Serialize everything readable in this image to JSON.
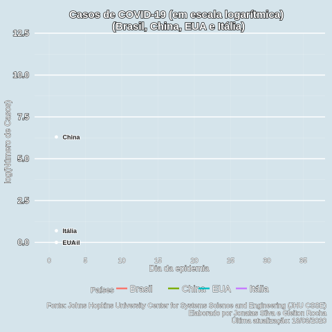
{
  "chart_data": {
    "type": "scatter",
    "title_line1": "Casos de COVID-19 (em escala logarítmica)",
    "title_line2": "(Brasil, China, EUA e Itália)",
    "xlabel": "Dia da epidemia",
    "ylabel": "log(Número de Casos)",
    "xlim": [
      -2,
      38
    ],
    "ylim": [
      -0.6,
      12.5
    ],
    "x_ticks": [
      0,
      5,
      10,
      15,
      20,
      25,
      30,
      35
    ],
    "x_tick_labels": [
      "0",
      "5",
      "10",
      "15",
      "20",
      "25",
      "30",
      "35"
    ],
    "y_ticks": [
      0,
      2.5,
      5,
      7.5,
      10,
      12.5
    ],
    "y_tick_labels": [
      "0.0",
      "2.5",
      "5.0",
      "7.5",
      "10.0",
      "12.5"
    ],
    "grid": true,
    "legend_title": "Países",
    "legend_position": "bottom",
    "series": [
      {
        "name": "Brasil",
        "color": "#f8766d",
        "x": [
          1
        ],
        "y": [
          0.0
        ],
        "label": "Brasil"
      },
      {
        "name": "China",
        "color": "#7cae00",
        "x": [
          1
        ],
        "y": [
          6.3
        ],
        "label": "China"
      },
      {
        "name": "EUA",
        "color": "#00bfc4",
        "x": [
          1
        ],
        "y": [
          0.0
        ],
        "label": "EUA"
      },
      {
        "name": "Itália",
        "color": "#c77cff",
        "x": [
          1
        ],
        "y": [
          0.7
        ],
        "label": "Itália"
      }
    ],
    "caption_line1": "Fonte: Johns Hopkins University Center for Systems Science and Engineering (JHU CSSE)",
    "caption_line2": "Elaborado por Jonatas Silva e Gleiton Rocha",
    "caption_line3": "Última atualização: 18/03/2020"
  }
}
